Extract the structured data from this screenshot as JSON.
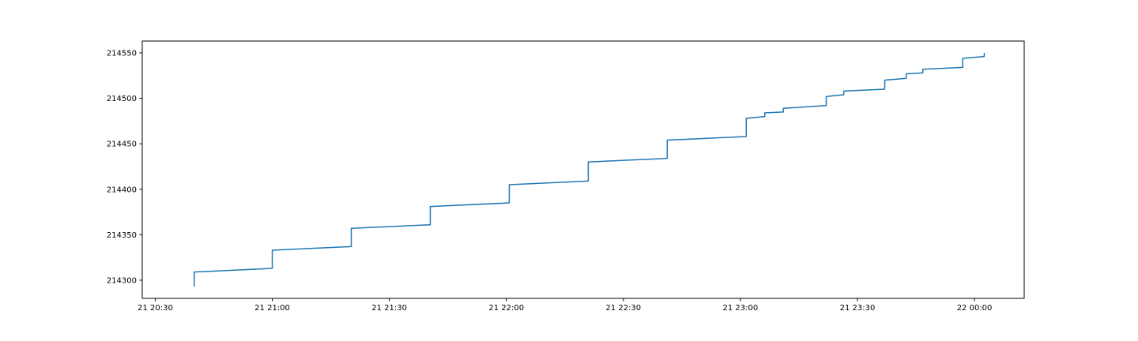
{
  "chart_data": {
    "type": "line",
    "title": "",
    "xlabel": "",
    "ylabel": "",
    "grid": false,
    "line_color": "#1f77b4",
    "x_ticks": [
      {
        "t": "2019-01-21 20:30",
        "label": "21 20:30"
      },
      {
        "t": "2019-01-21 21:00",
        "label": "21 21:00"
      },
      {
        "t": "2019-01-21 21:30",
        "label": "21 21:30"
      },
      {
        "t": "2019-01-21 22:00",
        "label": "21 22:00"
      },
      {
        "t": "2019-01-21 22:30",
        "label": "21 22:30"
      },
      {
        "t": "2019-01-21 23:00",
        "label": "21 23:00"
      },
      {
        "t": "2019-01-21 23:30",
        "label": "21 23:30"
      },
      {
        "t": "2019-01-22 00:00",
        "label": "22 00:00"
      }
    ],
    "y_ticks": [
      {
        "v": 214300,
        "label": "214300"
      },
      {
        "v": 214350,
        "label": "214350"
      },
      {
        "v": 214400,
        "label": "214400"
      },
      {
        "v": 214450,
        "label": "214450"
      },
      {
        "v": 214500,
        "label": "214500"
      },
      {
        "v": 214550,
        "label": "214550"
      }
    ],
    "xlim": [
      "2019-01-21 20:26:40",
      "2019-01-22 00:12:45"
    ],
    "ylim": [
      214280,
      214563
    ],
    "series": [
      {
        "x": [
          "2019-01-21 20:40:00",
          "2019-01-21 20:40:00",
          "2019-01-21 21:00:00",
          "2019-01-21 21:00:00",
          "2019-01-21 21:20:15",
          "2019-01-21 21:20:15",
          "2019-01-21 21:40:30",
          "2019-01-21 21:40:30",
          "2019-01-21 22:00:45",
          "2019-01-21 22:00:45",
          "2019-01-21 22:21:00",
          "2019-01-21 22:21:00",
          "2019-01-21 22:41:15",
          "2019-01-21 22:41:15",
          "2019-01-21 23:01:30",
          "2019-01-21 23:01:30",
          "2019-01-21 23:06:15",
          "2019-01-21 23:06:15",
          "2019-01-21 23:11:00",
          "2019-01-21 23:11:00",
          "2019-01-21 23:22:00",
          "2019-01-21 23:22:00",
          "2019-01-21 23:26:30",
          "2019-01-21 23:26:30",
          "2019-01-21 23:37:00",
          "2019-01-21 23:37:00",
          "2019-01-21 23:42:30",
          "2019-01-21 23:42:30",
          "2019-01-21 23:46:45",
          "2019-01-21 23:46:45",
          "2019-01-21 23:57:00",
          "2019-01-21 23:57:00",
          "2019-01-22 00:02:30",
          "2019-01-22 00:02:30"
        ],
        "y": [
          214293,
          214309,
          214313,
          214333,
          214337,
          214357,
          214361,
          214381,
          214385,
          214405,
          214409,
          214430,
          214434,
          214454,
          214458,
          214478,
          214480,
          214484,
          214485,
          214489,
          214492,
          214502,
          214504,
          214508,
          214510,
          214520,
          214522,
          214527,
          214528,
          214532,
          214534,
          214544,
          214546,
          214550
        ]
      }
    ]
  }
}
